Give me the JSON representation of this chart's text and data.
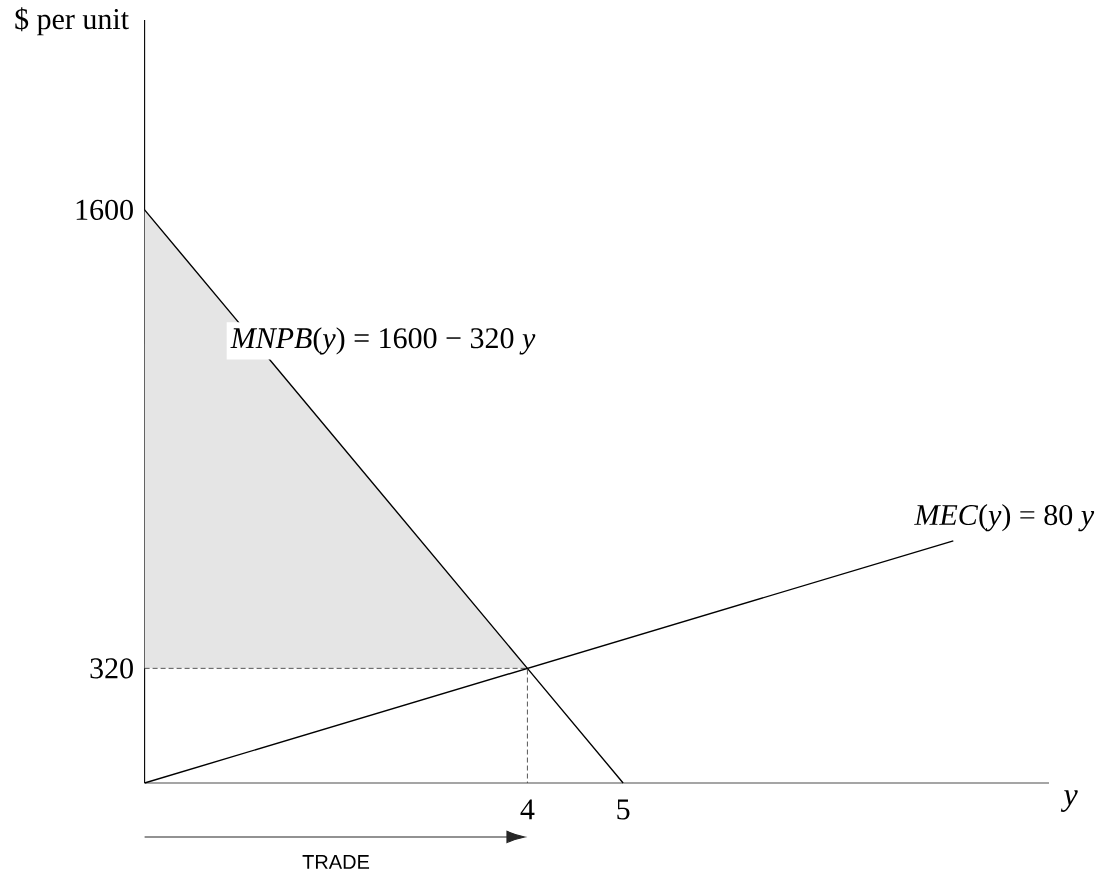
{
  "chart_data": {
    "type": "line",
    "xlabel": "y",
    "ylabel": "$ per unit",
    "xlim": [
      0,
      9.45
    ],
    "ylim": [
      0,
      2130
    ],
    "xticks": [
      4,
      5
    ],
    "yticks": [
      320,
      1600
    ],
    "series": [
      {
        "type": "line",
        "line_style": "dashed",
        "color": "#444444",
        "x": [
          0,
          4,
          4
        ],
        "values": [
          320,
          320,
          0
        ]
      },
      {
        "name": "*MNPB*(*y*) = 1600 − 320 *y*",
        "color": "#000000",
        "x": [
          0,
          4,
          5
        ],
        "values": [
          1600,
          320,
          0
        ],
        "lower": [
          320,
          320,
          null
        ],
        "upper": [
          1600,
          320,
          null
        ]
      },
      {
        "name": "*MEC*(*y*) = 80 *y*",
        "color": "#000000",
        "x": [
          0,
          8.45
        ],
        "values": [
          0,
          676
        ]
      }
    ],
    "annotations": [
      "TRADE"
    ]
  }
}
